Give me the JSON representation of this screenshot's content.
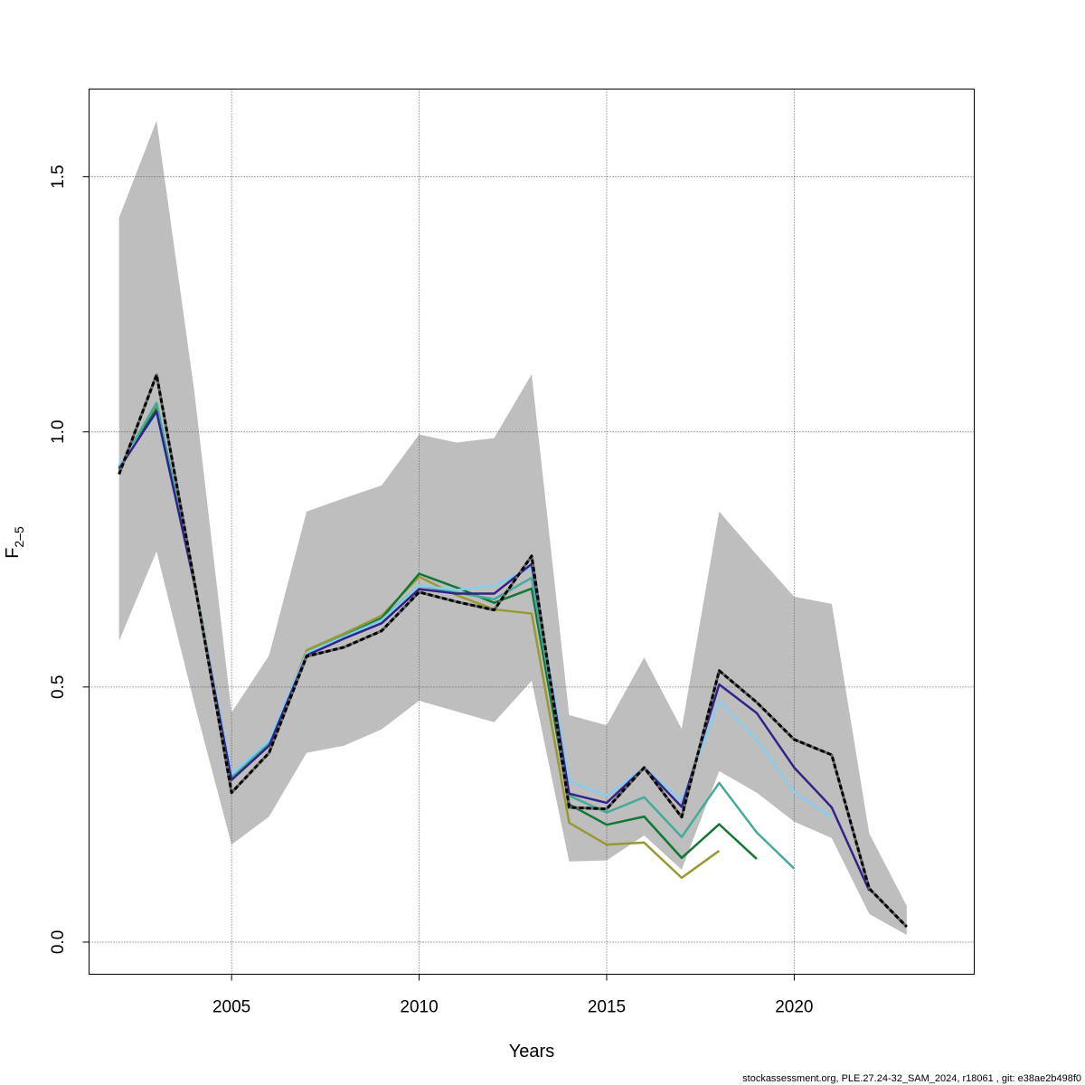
{
  "chart_data": {
    "type": "line",
    "title": "",
    "xlabel": "Years",
    "ylabel_main": "F",
    "ylabel_sub": "2–5",
    "xlim": [
      2001.2,
      2024.8
    ],
    "ylim": [
      -0.063,
      1.672
    ],
    "x_ticks": [
      2005,
      2010,
      2015,
      2020
    ],
    "x_tick_labels": [
      "2005",
      "2010",
      "2015",
      "2020"
    ],
    "y_ticks": [
      0.0,
      0.5,
      1.0,
      1.5
    ],
    "y_tick_labels": [
      "0.0",
      "0.5",
      "1.0",
      "1.5"
    ],
    "grid": true,
    "confidence_band": {
      "color": "#bebebe",
      "years": [
        2002,
        2003,
        2004,
        2005,
        2006,
        2007,
        2008,
        2009,
        2010,
        2011,
        2012,
        2013,
        2014,
        2015,
        2016,
        2017,
        2018,
        2019,
        2020,
        2021,
        2022,
        2023
      ],
      "upper": [
        1.42,
        1.61,
        1.083,
        0.45,
        0.562,
        0.844,
        0.87,
        0.895,
        0.995,
        0.979,
        0.988,
        1.113,
        0.445,
        0.425,
        0.558,
        0.418,
        0.844,
        0.759,
        0.677,
        0.663,
        0.213,
        0.071
      ],
      "lower": [
        0.59,
        0.766,
        0.47,
        0.191,
        0.246,
        0.371,
        0.385,
        0.417,
        0.473,
        0.452,
        0.431,
        0.512,
        0.158,
        0.16,
        0.209,
        0.142,
        0.335,
        0.293,
        0.236,
        0.204,
        0.055,
        0.014
      ]
    },
    "series": [
      {
        "color": "#999933",
        "start": 2002,
        "values": [
          0.925,
          1.05,
          0.71,
          0.32,
          0.385,
          0.572,
          0.605,
          0.64,
          0.716,
          0.68,
          0.652,
          0.644,
          0.234,
          0.191,
          0.195,
          0.126,
          0.179
        ]
      },
      {
        "color": "#117733",
        "start": 2002,
        "values": [
          0.93,
          1.045,
          0.71,
          0.32,
          0.385,
          0.565,
          0.6,
          0.635,
          0.722,
          0.695,
          0.665,
          0.693,
          0.27,
          0.23,
          0.246,
          0.165,
          0.231,
          0.163
        ]
      },
      {
        "color": "#44aa99",
        "start": 2002,
        "values": [
          0.93,
          1.057,
          0.71,
          0.322,
          0.39,
          0.567,
          0.6,
          0.632,
          0.699,
          0.685,
          0.672,
          0.714,
          0.287,
          0.254,
          0.284,
          0.206,
          0.312,
          0.215,
          0.144
        ]
      },
      {
        "color": "#88ccee",
        "start": 2002,
        "values": [
          0.935,
          1.035,
          0.705,
          0.33,
          0.395,
          0.567,
          0.598,
          0.63,
          0.699,
          0.69,
          0.699,
          0.734,
          0.316,
          0.287,
          0.342,
          0.277,
          0.472,
          0.397,
          0.293,
          0.245
        ]
      },
      {
        "color": "#332288",
        "start": 2002,
        "values": [
          0.928,
          1.04,
          0.705,
          0.318,
          0.385,
          0.562,
          0.595,
          0.625,
          0.692,
          0.683,
          0.683,
          0.741,
          0.291,
          0.273,
          0.342,
          0.265,
          0.505,
          0.449,
          0.342,
          0.264,
          0.101
        ]
      },
      {
        "color": "#000000",
        "start": 2002,
        "dashed": true,
        "values": [
          0.917,
          1.112,
          0.71,
          0.293,
          0.371,
          0.56,
          0.578,
          0.61,
          0.686,
          0.667,
          0.651,
          0.757,
          0.264,
          0.261,
          0.342,
          0.245,
          0.532,
          0.47,
          0.397,
          0.367,
          0.105,
          0.03
        ]
      }
    ]
  },
  "footer": "stockassessment.org, PLE.27.24-32_SAM_2024, r18061 , git: e38ae2b498f0"
}
